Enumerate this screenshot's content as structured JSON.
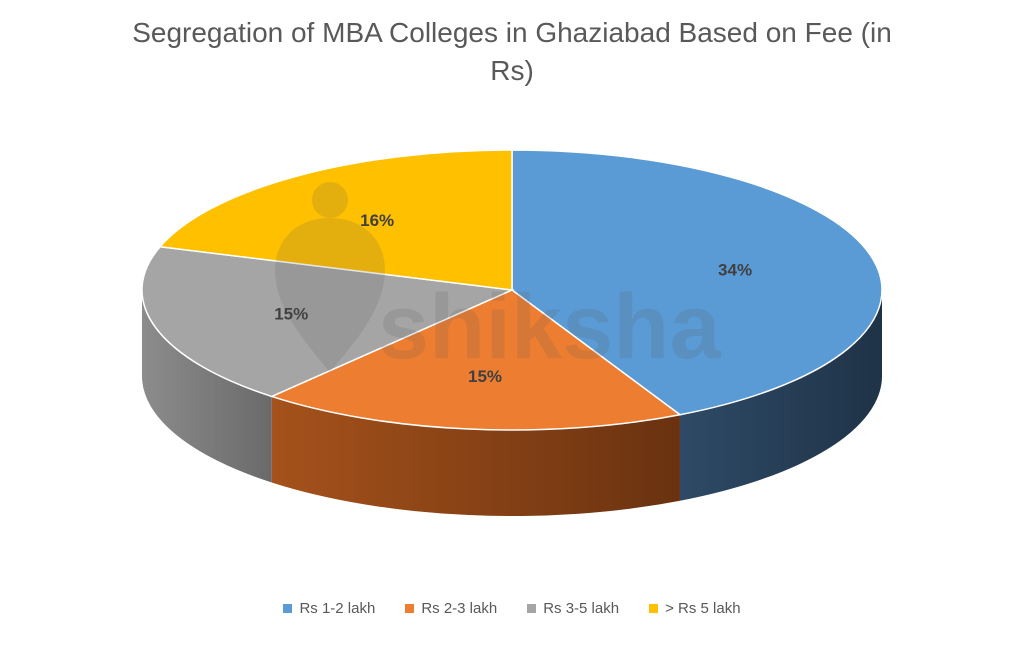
{
  "title_line1": "Segregation of MBA Colleges in Ghaziabad Based on Fee (in",
  "title_line2": "Rs)",
  "watermark_text": "shiksha",
  "chart_data": {
    "type": "pie",
    "title": "Segregation of MBA Colleges in Ghaziabad Based on Fee (in Rs)",
    "categories": [
      "Rs 1-2 lakh",
      "Rs 2-3 lakh",
      "Rs 3-5 lakh",
      "> Rs 5 lakh"
    ],
    "values": [
      34,
      15,
      15,
      16
    ],
    "labels": [
      "34%",
      "15%",
      "15%",
      "16%"
    ],
    "colors": [
      "#5B9BD5",
      "#ED7D31",
      "#A5A5A5",
      "#FFC000"
    ],
    "side_colors": [
      "#243F5A",
      "#7A3D12",
      "#6E6E6E",
      "#9A7400"
    ],
    "legend_position": "bottom",
    "style": "3d"
  }
}
